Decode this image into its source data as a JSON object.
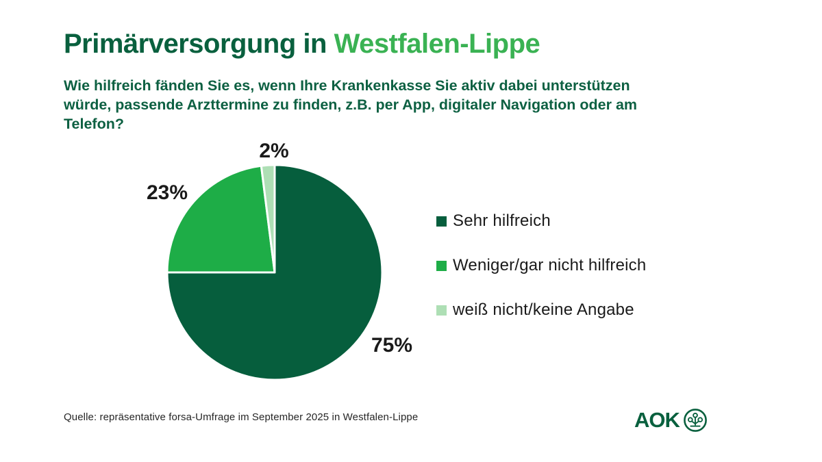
{
  "page": {
    "title_part1": "Primärversorgung in ",
    "title_part2": "Westfalen-Lippe",
    "question_lines": [
      "Wie hilfreich fänden Sie es, wenn Ihre Krankenkasse Sie aktiv dabei unterstützen",
      "würde, passende Arzttermine zu finden, z.B. per App, digitaler Navigation oder am",
      "Telefon?"
    ],
    "source": "Quelle: repräsentative forsa-Umfrage im September 2025 in Westfalen-Lippe",
    "logo_text": "AOK"
  },
  "colors": {
    "title_dark_green": "#09603e",
    "title_brand_green": "#3ab253",
    "question_green": "#0d6042",
    "label_black": "#1a1a1a",
    "source_gray": "#262626"
  },
  "chart_data": {
    "type": "pie",
    "title": "Primärversorgung in Westfalen-Lippe",
    "question": "Wie hilfreich fänden Sie es, wenn Ihre Krankenkasse Sie aktiv dabei unterstützen würde, passende Arzttermine zu finden, z.B. per App, digitaler Navigation oder am Telefon?",
    "labels": [
      "Sehr hilfreich",
      "Weniger/gar nicht hilfreich",
      "weiß nicht/keine Angabe"
    ],
    "values": [
      75,
      23,
      2
    ],
    "value_labels": {
      "v0": "75%",
      "v1": "23%",
      "v2": "2%"
    },
    "colors": [
      "#065e3d",
      "#1ead47",
      "#aedfb5"
    ],
    "start_angle_deg": 0,
    "direction": "clockwise",
    "legend_position": "right",
    "slice_border_color": "#ffffff",
    "source": "Quelle: repräsentative forsa-Umfrage im September 2025 in Westfalen-Lippe"
  }
}
